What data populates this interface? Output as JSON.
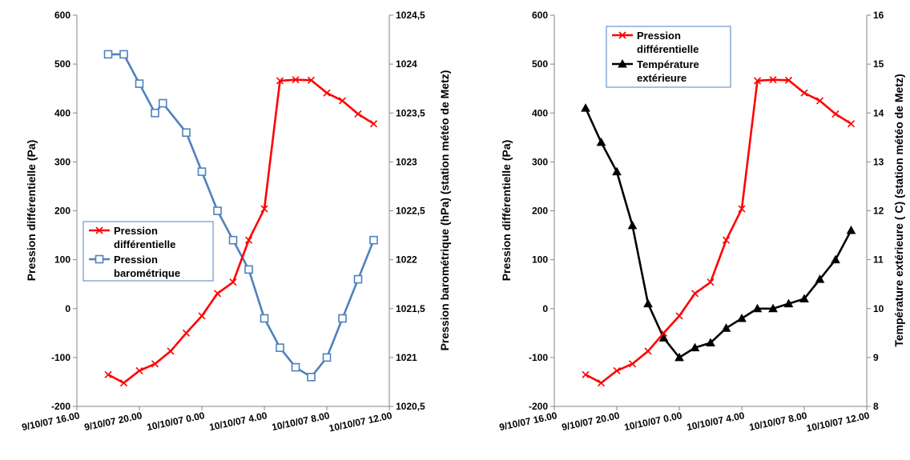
{
  "chart_data": [
    {
      "type": "line",
      "x_axis": {
        "type": "date",
        "range": [
          "2007-10-09T16:00",
          "2007-10-10T12:00"
        ],
        "tick_labels": [
          "9/10/07 16.00",
          "9/10/07 20.00",
          "10/10/07 0.00",
          "10/10/07 4.00",
          "10/10/07 8.00",
          "10/10/07 12.00"
        ]
      },
      "y_axis": {
        "label": "Pression différentielle (Pa)",
        "range": [
          -200,
          600
        ],
        "tick_labels": [
          "600",
          "500",
          "400",
          "300",
          "200",
          "100",
          "0",
          "-100",
          "-200"
        ]
      },
      "y2_axis": {
        "label": "Pression barométrique (hPa) (station météo de Metz)",
        "range": [
          1020.5,
          1024.5
        ],
        "tick_labels": [
          "1024,5",
          "1024",
          "1023,5",
          "1023",
          "1022,5",
          "1022",
          "1021,5",
          "1021",
          "1020,5"
        ]
      },
      "legend_position": "middle-left",
      "series": [
        {
          "name": "Pression différentielle",
          "name_lines": [
            "Pression",
            "différentielle"
          ],
          "axis": "y",
          "color": "#ff0000",
          "marker": "x",
          "points": [
            [
              "2007-10-09T18:00",
              -135
            ],
            [
              "2007-10-09T19:00",
              -152
            ],
            [
              "2007-10-09T20:00",
              -127
            ],
            [
              "2007-10-09T21:00",
              -113
            ],
            [
              "2007-10-09T22:00",
              -87
            ],
            [
              "2007-10-09T23:00",
              -50
            ],
            [
              "2007-10-10T00:00",
              -15
            ],
            [
              "2007-10-10T01:00",
              31
            ],
            [
              "2007-10-10T02:00",
              54
            ],
            [
              "2007-10-10T03:00",
              140
            ],
            [
              "2007-10-10T04:00",
              204
            ],
            [
              "2007-10-10T05:00",
              466
            ],
            [
              "2007-10-10T06:00",
              468
            ],
            [
              "2007-10-10T07:00",
              467
            ],
            [
              "2007-10-10T08:00",
              441
            ],
            [
              "2007-10-10T09:00",
              425
            ],
            [
              "2007-10-10T10:00",
              398
            ],
            [
              "2007-10-10T11:00",
              378
            ]
          ]
        },
        {
          "name": "Pression barométrique",
          "name_lines": [
            "Pression",
            "barométrique"
          ],
          "axis": "y2",
          "color": "#4f81bd",
          "marker": "square",
          "points": [
            [
              "2007-10-09T18:00",
              1024.1
            ],
            [
              "2007-10-09T19:00",
              1024.1
            ],
            [
              "2007-10-09T20:00",
              1023.8
            ],
            [
              "2007-10-09T21:00",
              1023.5
            ],
            [
              "2007-10-09T21:30",
              1023.6
            ],
            [
              "2007-10-09T23:00",
              1023.3
            ],
            [
              "2007-10-10T00:00",
              1022.9
            ],
            [
              "2007-10-10T01:00",
              1022.5
            ],
            [
              "2007-10-10T02:00",
              1022.2
            ],
            [
              "2007-10-10T03:00",
              1021.9
            ],
            [
              "2007-10-10T04:00",
              1021.4
            ],
            [
              "2007-10-10T05:00",
              1021.1
            ],
            [
              "2007-10-10T06:00",
              1020.9
            ],
            [
              "2007-10-10T07:00",
              1020.8
            ],
            [
              "2007-10-10T08:00",
              1021.0
            ],
            [
              "2007-10-10T09:00",
              1021.4
            ],
            [
              "2007-10-10T10:00",
              1021.8
            ],
            [
              "2007-10-10T11:00",
              1022.2
            ]
          ]
        }
      ]
    },
    {
      "type": "line",
      "x_axis": {
        "type": "date",
        "range": [
          "2007-10-09T16:00",
          "2007-10-10T12:00"
        ],
        "tick_labels": [
          "9/10/07 16.00",
          "9/10/07 20.00",
          "10/10/07 0.00",
          "10/10/07 4.00",
          "10/10/07 8.00",
          "10/10/07 12.00"
        ]
      },
      "y_axis": {
        "label": "Pression différentielle (Pa)",
        "range": [
          -200,
          600
        ],
        "tick_labels": [
          "600",
          "500",
          "400",
          "300",
          "200",
          "100",
          "0",
          "-100",
          "-200"
        ]
      },
      "y2_axis": {
        "label": "Température extérieure ( C) (station météo de Metz)",
        "range": [
          8,
          16
        ],
        "tick_labels": [
          "16",
          "15",
          "14",
          "13",
          "12",
          "11",
          "10",
          "9",
          "8"
        ]
      },
      "legend_position": "top-left",
      "series": [
        {
          "name": "Pression différentielle",
          "name_lines": [
            "Pression",
            "différentielle"
          ],
          "axis": "y",
          "color": "#ff0000",
          "marker": "x",
          "points": [
            [
              "2007-10-09T18:00",
              -135
            ],
            [
              "2007-10-09T19:00",
              -152
            ],
            [
              "2007-10-09T20:00",
              -127
            ],
            [
              "2007-10-09T21:00",
              -113
            ],
            [
              "2007-10-09T22:00",
              -87
            ],
            [
              "2007-10-09T23:00",
              -50
            ],
            [
              "2007-10-10T00:00",
              -15
            ],
            [
              "2007-10-10T01:00",
              31
            ],
            [
              "2007-10-10T02:00",
              54
            ],
            [
              "2007-10-10T03:00",
              140
            ],
            [
              "2007-10-10T04:00",
              204
            ],
            [
              "2007-10-10T05:00",
              466
            ],
            [
              "2007-10-10T06:00",
              468
            ],
            [
              "2007-10-10T07:00",
              467
            ],
            [
              "2007-10-10T08:00",
              441
            ],
            [
              "2007-10-10T09:00",
              425
            ],
            [
              "2007-10-10T10:00",
              398
            ],
            [
              "2007-10-10T11:00",
              378
            ]
          ]
        },
        {
          "name": "Température extérieure",
          "name_lines": [
            "Température",
            "extérieure"
          ],
          "axis": "y2",
          "color": "#000000",
          "marker": "triangle",
          "points": [
            [
              "2007-10-09T18:00",
              14.1
            ],
            [
              "2007-10-09T19:00",
              13.4
            ],
            [
              "2007-10-09T20:00",
              12.8
            ],
            [
              "2007-10-09T21:00",
              11.7
            ],
            [
              "2007-10-09T22:00",
              10.1
            ],
            [
              "2007-10-09T23:00",
              9.4
            ],
            [
              "2007-10-10T00:00",
              9.0
            ],
            [
              "2007-10-10T01:00",
              9.2
            ],
            [
              "2007-10-10T02:00",
              9.3
            ],
            [
              "2007-10-10T03:00",
              9.6
            ],
            [
              "2007-10-10T04:00",
              9.8
            ],
            [
              "2007-10-10T05:00",
              10.0
            ],
            [
              "2007-10-10T06:00",
              10.0
            ],
            [
              "2007-10-10T07:00",
              10.1
            ],
            [
              "2007-10-10T08:00",
              10.2
            ],
            [
              "2007-10-10T09:00",
              10.6
            ],
            [
              "2007-10-10T10:00",
              11.0
            ],
            [
              "2007-10-10T11:00",
              11.6
            ]
          ]
        }
      ]
    }
  ]
}
